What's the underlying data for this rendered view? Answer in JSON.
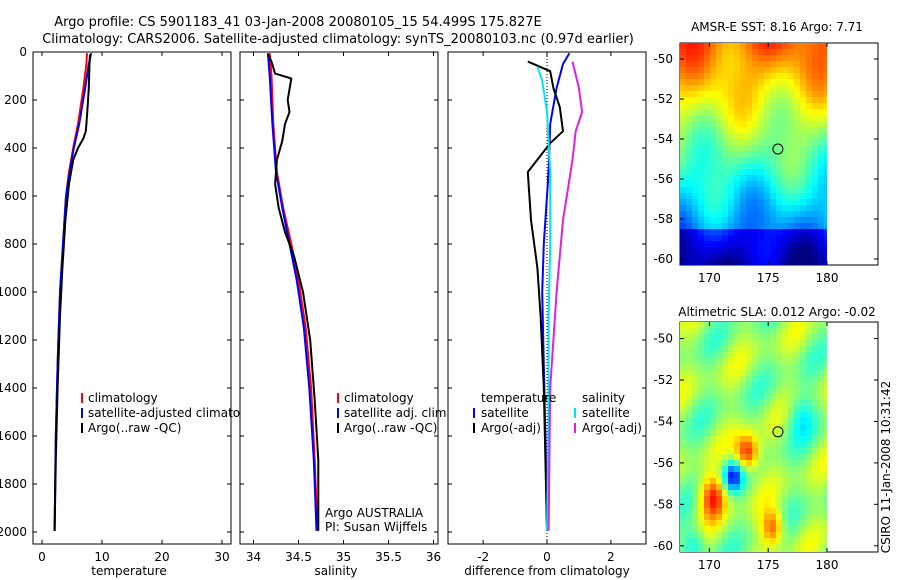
{
  "header": {
    "title_line1": "Argo profile: CS 5901183_41 03-Jan-2008 20080105_15 54.499S 175.827E",
    "title_line2": "Climatology: CARS2006. Satellite-adjusted climatology: synTS_20080103.nc (0.97d earlier)"
  },
  "footer": {
    "stamp": "CSIRO 11-Jan-2008 10:31:42"
  },
  "chart_data": [
    {
      "id": "temperature",
      "type": "line",
      "xlabel": "temperature",
      "xlim": [
        -1.5,
        31.5
      ],
      "ylim": [
        0,
        2050
      ],
      "xticks": [
        0,
        10,
        20,
        30
      ],
      "yticks": [
        0,
        200,
        400,
        600,
        800,
        1000,
        1200,
        1400,
        1600,
        1800,
        2000
      ],
      "legend": [
        "climatology",
        "satellite-adjusted climatology",
        "Argo(..raw -QC)"
      ],
      "series": [
        {
          "name": "climatology",
          "color": "#ff0000",
          "x": [
            7.5,
            7.4,
            6.9,
            6.0,
            5.2,
            4.5,
            4.0,
            3.5,
            3.0,
            2.6,
            2.3,
            2.1
          ],
          "y": [
            5,
            50,
            150,
            300,
            400,
            500,
            600,
            800,
            1000,
            1300,
            1600,
            1995
          ]
        },
        {
          "name": "satellite-adjusted climatology",
          "color": "#0000ff",
          "x": [
            8.2,
            7.8,
            7.2,
            6.2,
            5.3,
            4.6,
            4.0,
            3.5,
            3.0,
            2.6,
            2.3,
            2.1
          ],
          "y": [
            5,
            50,
            150,
            300,
            400,
            500,
            600,
            800,
            1000,
            1300,
            1600,
            1995
          ]
        },
        {
          "name": "Argo(..raw -QC)",
          "color": "#000000",
          "x": [
            8.0,
            7.9,
            7.8,
            7.6,
            7.4,
            7.3,
            6.9,
            6.0,
            5.2,
            4.5,
            3.9,
            3.4,
            3.0,
            2.6,
            2.3,
            2.1
          ],
          "y": [
            10,
            60,
            150,
            230,
            300,
            330,
            360,
            400,
            450,
            550,
            700,
            900,
            1100,
            1400,
            1700,
            1995
          ]
        }
      ]
    },
    {
      "id": "salinity",
      "type": "line",
      "xlabel": "salinity",
      "xlim": [
        33.85,
        36.05
      ],
      "ylim": [
        0,
        2050
      ],
      "xticks": [
        34,
        34.5,
        35,
        35.5,
        36
      ],
      "xticklabels": [
        "34",
        "34.5",
        "35",
        "35.5",
        "36"
      ],
      "yticks": [
        0,
        200,
        400,
        600,
        800,
        1000,
        1200,
        1400,
        1600,
        1800,
        2000
      ],
      "legend": [
        "climatology",
        "satellite adj. clim.",
        "Argo(..raw -QC)"
      ],
      "annotation": [
        "Argo AUSTRALIA",
        "PI: Susan Wijffels"
      ],
      "series": [
        {
          "name": "climatology",
          "color": "#ff0000",
          "x": [
            34.18,
            34.2,
            34.22,
            34.26,
            34.33,
            34.42,
            34.5,
            34.58,
            34.64,
            34.68,
            34.71
          ],
          "y": [
            5,
            100,
            300,
            500,
            650,
            800,
            950,
            1150,
            1400,
            1700,
            1995
          ]
        },
        {
          "name": "satellite adj. clim.",
          "color": "#0000ff",
          "x": [
            34.16,
            34.18,
            34.21,
            34.25,
            34.32,
            34.4,
            34.48,
            34.56,
            34.62,
            34.67,
            34.7
          ],
          "y": [
            5,
            100,
            300,
            500,
            650,
            800,
            950,
            1150,
            1400,
            1700,
            1995
          ]
        },
        {
          "name": "Argo(..raw -QC)",
          "color": "#000000",
          "x": [
            34.16,
            34.2,
            34.24,
            34.42,
            34.38,
            34.4,
            34.35,
            34.32,
            34.26,
            34.24,
            34.28,
            34.35,
            34.45,
            34.55,
            34.63,
            34.68,
            34.72,
            34.72
          ],
          "y": [
            10,
            40,
            90,
            110,
            200,
            250,
            300,
            370,
            450,
            550,
            650,
            750,
            850,
            1000,
            1200,
            1450,
            1700,
            1995
          ]
        }
      ]
    },
    {
      "id": "difference",
      "type": "line",
      "xlabel": "difference from climatology",
      "xlim": [
        -3.1,
        3.1
      ],
      "ylim": [
        0,
        2050
      ],
      "xticks": [
        -2,
        0,
        2
      ],
      "yticks": [
        0,
        200,
        400,
        600,
        800,
        1000,
        1200,
        1400,
        1600,
        1800,
        2000
      ],
      "legend_titles": [
        "temperature",
        "salinity"
      ],
      "legend_left": [
        "satellite",
        "Argo(-adj)"
      ],
      "legend_right": [
        "satellite",
        "Argo(-adj)"
      ],
      "series": [
        {
          "name": "temperature satellite",
          "color": "#0000ff",
          "x": [
            0.7,
            0.5,
            0.3,
            0.1,
            0.05,
            -0.1,
            -0.15,
            -0.1,
            -0.05,
            0
          ],
          "y": [
            5,
            50,
            150,
            300,
            500,
            800,
            1000,
            1300,
            1600,
            1995
          ]
        },
        {
          "name": "temperature Argo(-adj)",
          "color": "#000000",
          "x": [
            -0.6,
            0.1,
            0.2,
            0.4,
            0.5,
            0.1,
            -0.6,
            -0.5,
            -0.3,
            -0.2,
            -0.1,
            0
          ],
          "y": [
            40,
            80,
            150,
            230,
            330,
            380,
            500,
            700,
            900,
            1100,
            1400,
            1995
          ]
        },
        {
          "name": "salinity satellite",
          "color": "#00e5ee",
          "x": [
            -0.3,
            -0.15,
            0.0,
            0.1,
            0.1,
            0.05,
            0.05,
            0.0
          ],
          "y": [
            60,
            120,
            250,
            500,
            800,
            1100,
            1500,
            1995
          ]
        },
        {
          "name": "salinity Argo(-adj)",
          "color": "#e020e0",
          "x": [
            0.8,
            1.0,
            1.1,
            0.9,
            0.8,
            0.5,
            0.3,
            0.1,
            0.05
          ],
          "y": [
            40,
            150,
            250,
            330,
            450,
            700,
            1000,
            1400,
            1995
          ]
        }
      ]
    },
    {
      "id": "sst-map",
      "type": "heatmap",
      "title": "AMSR-E SST: 8.16 Argo: 7.71",
      "xlim": [
        167.5,
        180
      ],
      "ylim": [
        -60.3,
        -49.2
      ],
      "xticks": [
        170,
        175,
        180
      ],
      "yticks": [
        -50,
        -52,
        -54,
        -56,
        -58,
        -60
      ],
      "marker": {
        "lon": 175.827,
        "lat": -54.499
      }
    },
    {
      "id": "sla-map",
      "type": "heatmap",
      "title": "Altimetric SLA: 0.012 Argo: -0.02",
      "xlim": [
        167.5,
        180
      ],
      "ylim": [
        -60.3,
        -49.2
      ],
      "xticks": [
        170,
        175,
        180
      ],
      "yticks": [
        -50,
        -52,
        -54,
        -56,
        -58,
        -60
      ],
      "marker": {
        "lon": 175.827,
        "lat": -54.499
      }
    }
  ]
}
